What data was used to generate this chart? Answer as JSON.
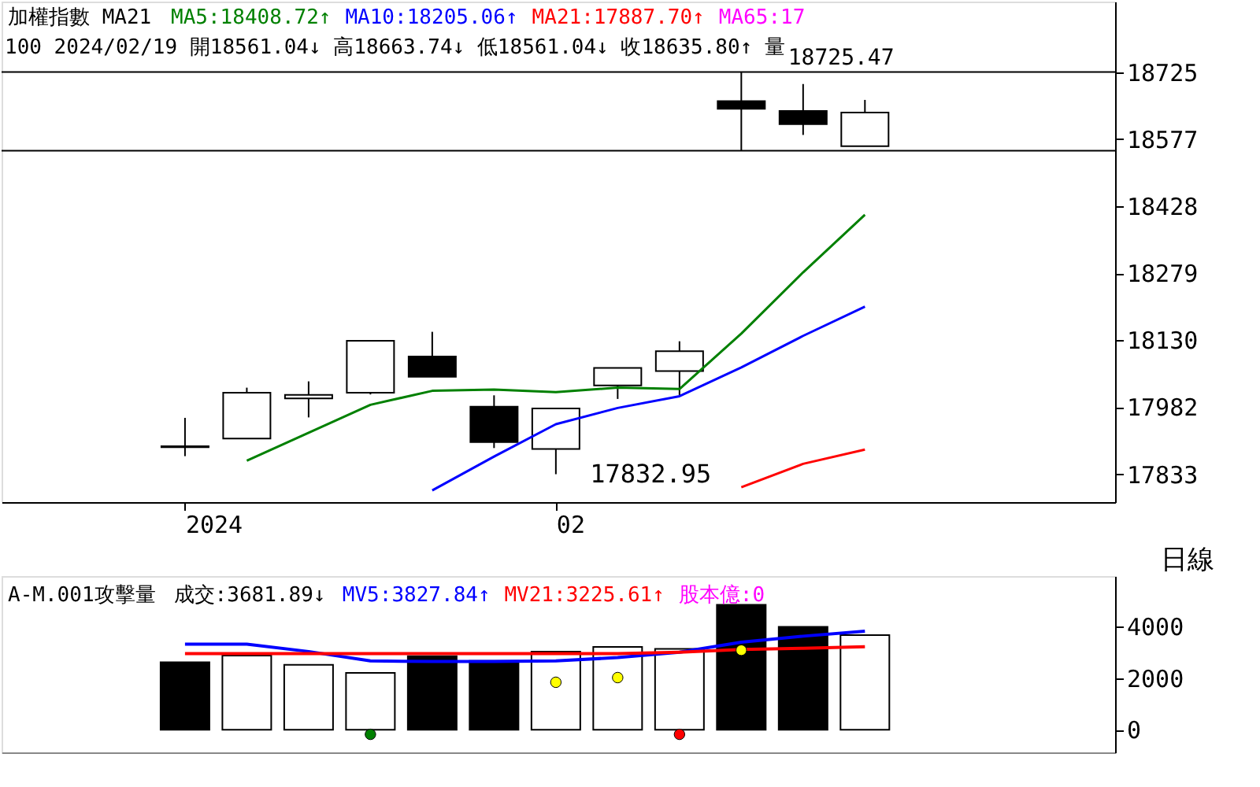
{
  "chart_data": [
    {
      "type": "candlestick",
      "title": "加權指數 MA21",
      "categories": [
        "2024",
        null,
        null,
        null,
        null,
        null,
        "02",
        null,
        null,
        null,
        null,
        null
      ],
      "ohlc": [
        [
          17895,
          17958,
          17873,
          17893
        ],
        [
          17912,
          18025,
          17912,
          18014
        ],
        [
          18001,
          18039,
          17959,
          18009
        ],
        [
          18014,
          18129,
          18010,
          18129
        ],
        [
          18094,
          18149,
          18049,
          18049
        ],
        [
          17983,
          18008,
          17891,
          17904
        ],
        [
          17889,
          17979,
          17832.95,
          17979
        ],
        [
          18030,
          18069,
          18000,
          18069
        ],
        [
          18062,
          18128,
          18008,
          18106
        ],
        [
          18661,
          18725.47,
          18551,
          18644
        ],
        [
          18639,
          18699,
          18586,
          18610
        ],
        [
          18561.04,
          18663.74,
          18561.04,
          18635.8
        ]
      ],
      "colors": [
        "#000000",
        "#ffffff",
        "#ffffff",
        "#ffffff",
        "#000000",
        "#000000",
        "#ffffff",
        "#ffffff",
        "#ffffff",
        "#000000",
        "#000000",
        "#ffffff"
      ],
      "series": [
        {
          "name": "MA5:18408.72↑",
          "type": "line",
          "color": "#008000",
          "values": [
            null,
            17863,
            17925,
            17987,
            18018,
            18021,
            18015,
            18025,
            18022,
            18145,
            18281,
            18408.72
          ]
        },
        {
          "name": "MA10:18205.06↑",
          "type": "line",
          "color": "#0000ff",
          "values": [
            null,
            null,
            null,
            null,
            17797,
            17872,
            17944,
            17980,
            18006,
            18070,
            18140,
            18205.06
          ]
        },
        {
          "name": "MA21:17887.70↑",
          "type": "line",
          "color": "#ff0000",
          "values": [
            null,
            null,
            null,
            null,
            null,
            null,
            null,
            null,
            null,
            17804,
            17856,
            17887.7
          ]
        },
        {
          "name": "MA65:17",
          "type": "line",
          "color": "#ff00ff",
          "values": [
            null,
            null,
            null,
            null,
            null,
            null,
            null,
            null,
            null,
            null,
            null,
            null
          ]
        }
      ],
      "ylim": [
        17771,
        18882
      ],
      "yticks": [
        18725,
        18577,
        18428,
        18279,
        18130,
        17982,
        17833
      ],
      "ref_lines": [
        {
          "axis": "y",
          "value": 18725.47
        },
        {
          "axis": "y",
          "value": 18551
        }
      ],
      "annotations": [
        "100 2024/02/19 開18561.04↓ 高18663.74↓ 低18561.04↓ 收18635.80↑ 量",
        {
          "text": "18725.47",
          "y": 18725.47
        },
        "17832.95"
      ],
      "legend": "top left",
      "grid": false
    },
    {
      "type": "bar",
      "title": "A-M.001攻擊量",
      "categories": [
        null,
        null,
        null,
        null,
        null,
        null,
        null,
        null,
        null,
        null,
        null,
        null
      ],
      "series": [
        {
          "name": "成交:3681.89↓",
          "type": "bar",
          "colors": [
            "#000000",
            "#ffffff",
            "#ffffff",
            "#ffffff",
            "#000000",
            "#000000",
            "#ffffff",
            "#ffffff",
            "#ffffff",
            "#000000",
            "#000000",
            "#ffffff"
          ],
          "values": [
            2623,
            2883,
            2519,
            2208,
            2857,
            2675,
            3039,
            3221,
            3143,
            4857,
            4000,
            3681.89
          ]
        },
        {
          "name": "MV5:3827.84↑",
          "type": "line",
          "color": "#0000ff",
          "values": [
            3325,
            3325,
            3039,
            2675,
            2649,
            2649,
            2675,
            2805,
            3013,
            3403,
            3636,
            3827.84
          ]
        },
        {
          "name": "MV21:3225.61↑",
          "type": "line",
          "color": "#ff0000",
          "values": [
            2961,
            2961,
            2961,
            2961,
            2961,
            2961,
            2961,
            2961,
            3013,
            3117,
            3169,
            3225.61
          ]
        },
        {
          "type": "scatter",
          "colors": [
            null,
            null,
            null,
            "#008000",
            null,
            null,
            "#ffff00",
            "#ffff00",
            "#ff0000",
            "#ffff00",
            null,
            null
          ],
          "values": [
            null,
            null,
            null,
            -182,
            null,
            null,
            1844,
            2026,
            -182,
            3091,
            null,
            null
          ]
        }
      ],
      "ylim": [
        -883,
        5974
      ],
      "yticks": [
        0,
        2000,
        4000
      ],
      "annotations": [
        "股本億:0",
        "日線"
      ],
      "tick_labels": "y",
      "grid": false
    }
  ]
}
